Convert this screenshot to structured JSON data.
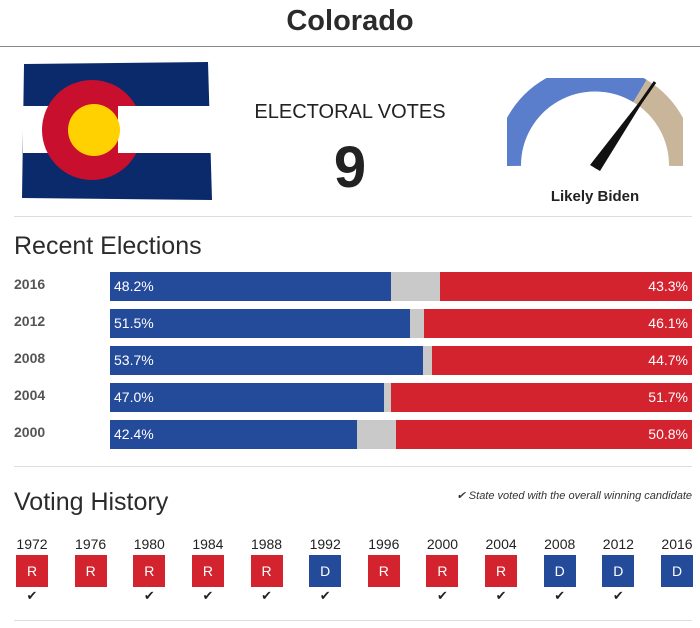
{
  "state": "Colorado",
  "electoral": {
    "label": "ELECTORAL VOTES",
    "count": "9"
  },
  "forecast": {
    "label": "Likely Biden",
    "colors": {
      "dem": "#5a7dcc",
      "rep": "#c9b59a"
    }
  },
  "recent": {
    "title": "Recent Elections",
    "rows": [
      {
        "year": "2016",
        "dem_label": "48.2%",
        "rep_label": "43.3%",
        "dem": 48.2,
        "rep": 43.3
      },
      {
        "year": "2012",
        "dem_label": "51.5%",
        "rep_label": "46.1%",
        "dem": 51.5,
        "rep": 46.1
      },
      {
        "year": "2008",
        "dem_label": "53.7%",
        "rep_label": "44.7%",
        "dem": 53.7,
        "rep": 44.7
      },
      {
        "year": "2004",
        "dem_label": "47.0%",
        "rep_label": "51.7%",
        "dem": 47.0,
        "rep": 51.7
      },
      {
        "year": "2000",
        "dem_label": "42.4%",
        "rep_label": "50.8%",
        "dem": 42.4,
        "rep": 50.8
      }
    ]
  },
  "history": {
    "title": "Voting History",
    "note": "State voted with the overall winning candidate",
    "check_icon": "check-icon",
    "items": [
      {
        "year": "1972",
        "party": "R",
        "check": true
      },
      {
        "year": "1976",
        "party": "R",
        "check": false
      },
      {
        "year": "1980",
        "party": "R",
        "check": true
      },
      {
        "year": "1984",
        "party": "R",
        "check": true
      },
      {
        "year": "1988",
        "party": "R",
        "check": true
      },
      {
        "year": "1992",
        "party": "D",
        "check": true
      },
      {
        "year": "1996",
        "party": "R",
        "check": false
      },
      {
        "year": "2000",
        "party": "R",
        "check": true
      },
      {
        "year": "2004",
        "party": "R",
        "check": true
      },
      {
        "year": "2008",
        "party": "D",
        "check": true
      },
      {
        "year": "2012",
        "party": "D",
        "check": true
      },
      {
        "year": "2016",
        "party": "D",
        "check": false
      }
    ]
  },
  "colors": {
    "dem": "#244a9a",
    "rep": "#d2232f",
    "other": "#c9c9c9"
  }
}
